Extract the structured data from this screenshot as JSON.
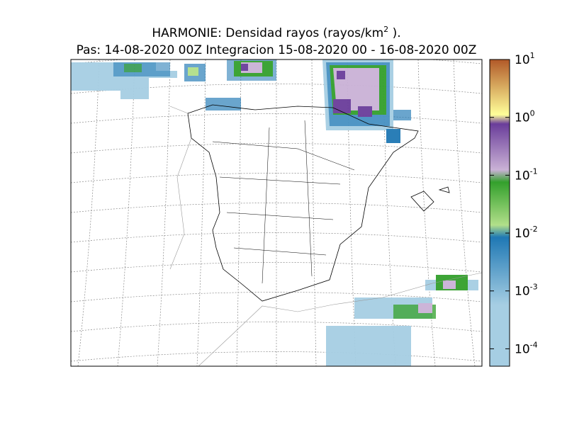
{
  "title": "HARMONIE: Densidad rayos  (rayos/km",
  "title_sup": "2",
  "title_end": " ).",
  "subtitle": "Pas: 14-08-2020 00Z Integracion 15-08-2020 00 - 16-08-2020 00Z",
  "colorbar": {
    "log": true,
    "clim": [
      5e-05,
      10
    ],
    "ticks": [
      {
        "value": 0.0001,
        "label": "10",
        "sup": "-4"
      },
      {
        "value": 0.001,
        "label": "10",
        "sup": "-3"
      },
      {
        "value": 0.01,
        "label": "10",
        "sup": "-2"
      },
      {
        "value": 0.1,
        "label": "10",
        "sup": "-1"
      },
      {
        "value": 1,
        "label": "10",
        "sup": "0"
      },
      {
        "value": 10,
        "label": "10",
        "sup": "1"
      }
    ]
  }
}
